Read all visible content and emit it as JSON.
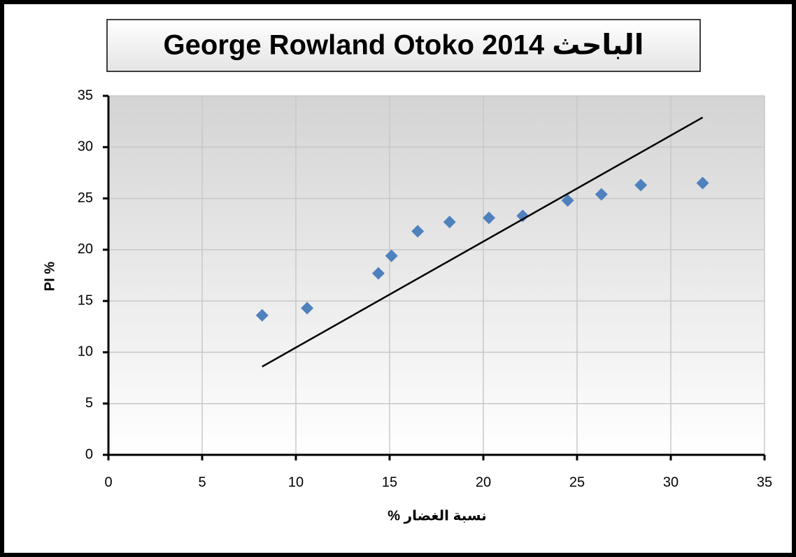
{
  "chart_data": {
    "type": "scatter",
    "title": "George Rowland Otoko  2014  الباحث",
    "x_label": "نسبة الغضار %",
    "y_label": "PI %",
    "xlim": [
      0,
      35
    ],
    "ylim": [
      0,
      35
    ],
    "xticks": [
      0,
      5,
      10,
      15,
      20,
      25,
      30,
      35
    ],
    "yticks": [
      0,
      5,
      10,
      15,
      20,
      25,
      30,
      35
    ],
    "grid": true,
    "series": [
      {
        "mode": "markers",
        "marker": "diamond",
        "color": "#4f81bd",
        "x": [
          8.2,
          10.6,
          14.4,
          15.1,
          16.5,
          18.2,
          20.3,
          22.1,
          24.5,
          26.3,
          28.4,
          31.7
        ],
        "values": [
          13.6,
          14.3,
          17.7,
          19.4,
          21.8,
          22.7,
          23.1,
          23.3,
          24.8,
          25.4,
          26.3,
          26.5
        ]
      },
      {
        "mode": "line",
        "color": "#000000",
        "x": [
          8.2,
          31.7
        ],
        "values": [
          8.6,
          32.9
        ]
      }
    ]
  }
}
